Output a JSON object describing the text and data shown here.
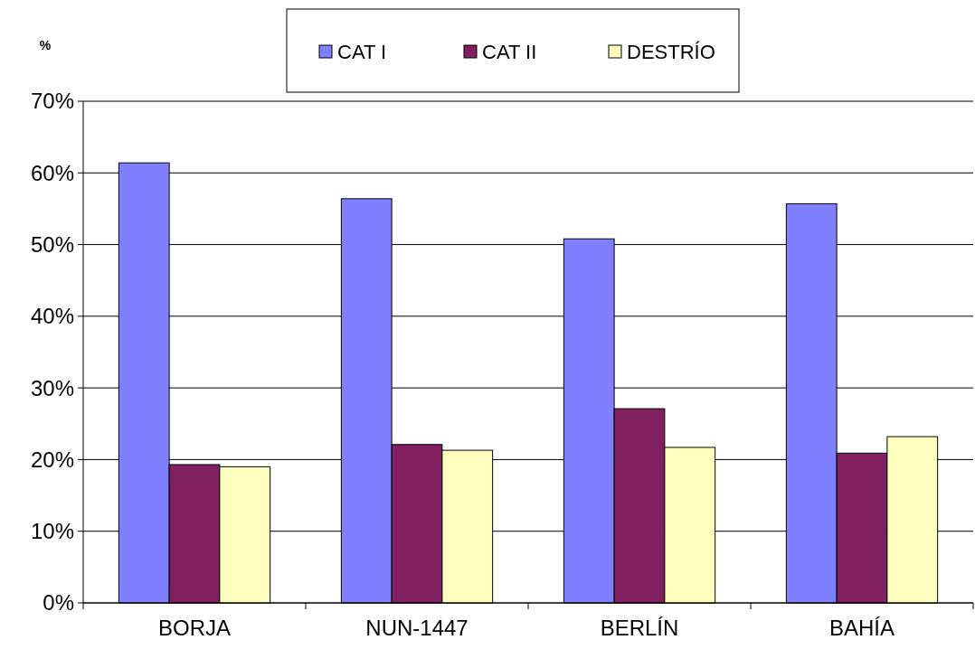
{
  "chart_data": {
    "type": "bar",
    "ylabel": "%",
    "categories": [
      "BORJA",
      "NUN-1447",
      "BERLÍN",
      "BAHÍA"
    ],
    "series": [
      {
        "name": "CAT I",
        "color": "#8080ff",
        "values": [
          61.4,
          56.4,
          50.8,
          55.7
        ]
      },
      {
        "name": "CAT II",
        "color": "#802060",
        "values": [
          19.3,
          22.1,
          27.1,
          20.9
        ]
      },
      {
        "name": "DESTRÍO",
        "color": "#ffffc0",
        "values": [
          19.0,
          21.3,
          21.7,
          23.2
        ]
      }
    ],
    "ylim": [
      0,
      70
    ],
    "yticks": [
      {
        "value": 0,
        "label": "0%"
      },
      {
        "value": 10,
        "label": "10%"
      },
      {
        "value": 20,
        "label": "20%"
      },
      {
        "value": 30,
        "label": "30%"
      },
      {
        "value": 40,
        "label": "40%"
      },
      {
        "value": 50,
        "label": "50%"
      },
      {
        "value": 60,
        "label": "60%"
      },
      {
        "value": 70,
        "label": "70%"
      }
    ],
    "grid": "y",
    "legend": "top"
  }
}
